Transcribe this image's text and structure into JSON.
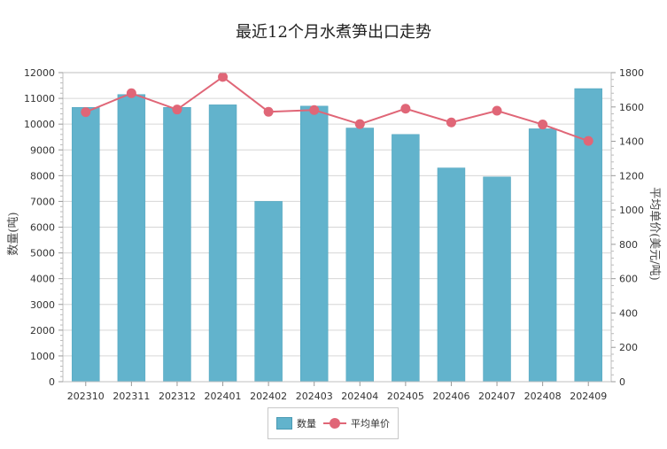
{
  "chart_data": {
    "type": "bar",
    "title": "最近12个月水煮笋出口走势",
    "categories": [
      "202310",
      "202311",
      "202312",
      "202401",
      "202402",
      "202403",
      "202404",
      "202405",
      "202406",
      "202407",
      "202408",
      "202409"
    ],
    "series": [
      {
        "name": "数量",
        "type": "bar",
        "axis": "left",
        "color": "#62b3cc",
        "values": [
          10650,
          11150,
          10650,
          10750,
          7000,
          10700,
          9850,
          9600,
          8300,
          7950,
          9820,
          11380
        ]
      },
      {
        "name": "平均单价",
        "type": "line",
        "axis": "right",
        "color": "#e06677",
        "values": [
          1570,
          1680,
          1585,
          1775,
          1572,
          1582,
          1500,
          1590,
          1510,
          1578,
          1498,
          1402
        ]
      }
    ],
    "ylabel": "数量(吨)",
    "y2label": "平均单价(美元/吨)",
    "ylim": [
      0,
      12000
    ],
    "yticks": [
      0,
      1000,
      2000,
      3000,
      4000,
      5000,
      6000,
      7000,
      8000,
      9000,
      10000,
      11000,
      12000
    ],
    "y2lim": [
      0,
      1800
    ],
    "y2ticks": [
      0,
      200,
      400,
      600,
      800,
      1000,
      1200,
      1400,
      1600,
      1800
    ],
    "grid": true,
    "legend": "bottom"
  }
}
